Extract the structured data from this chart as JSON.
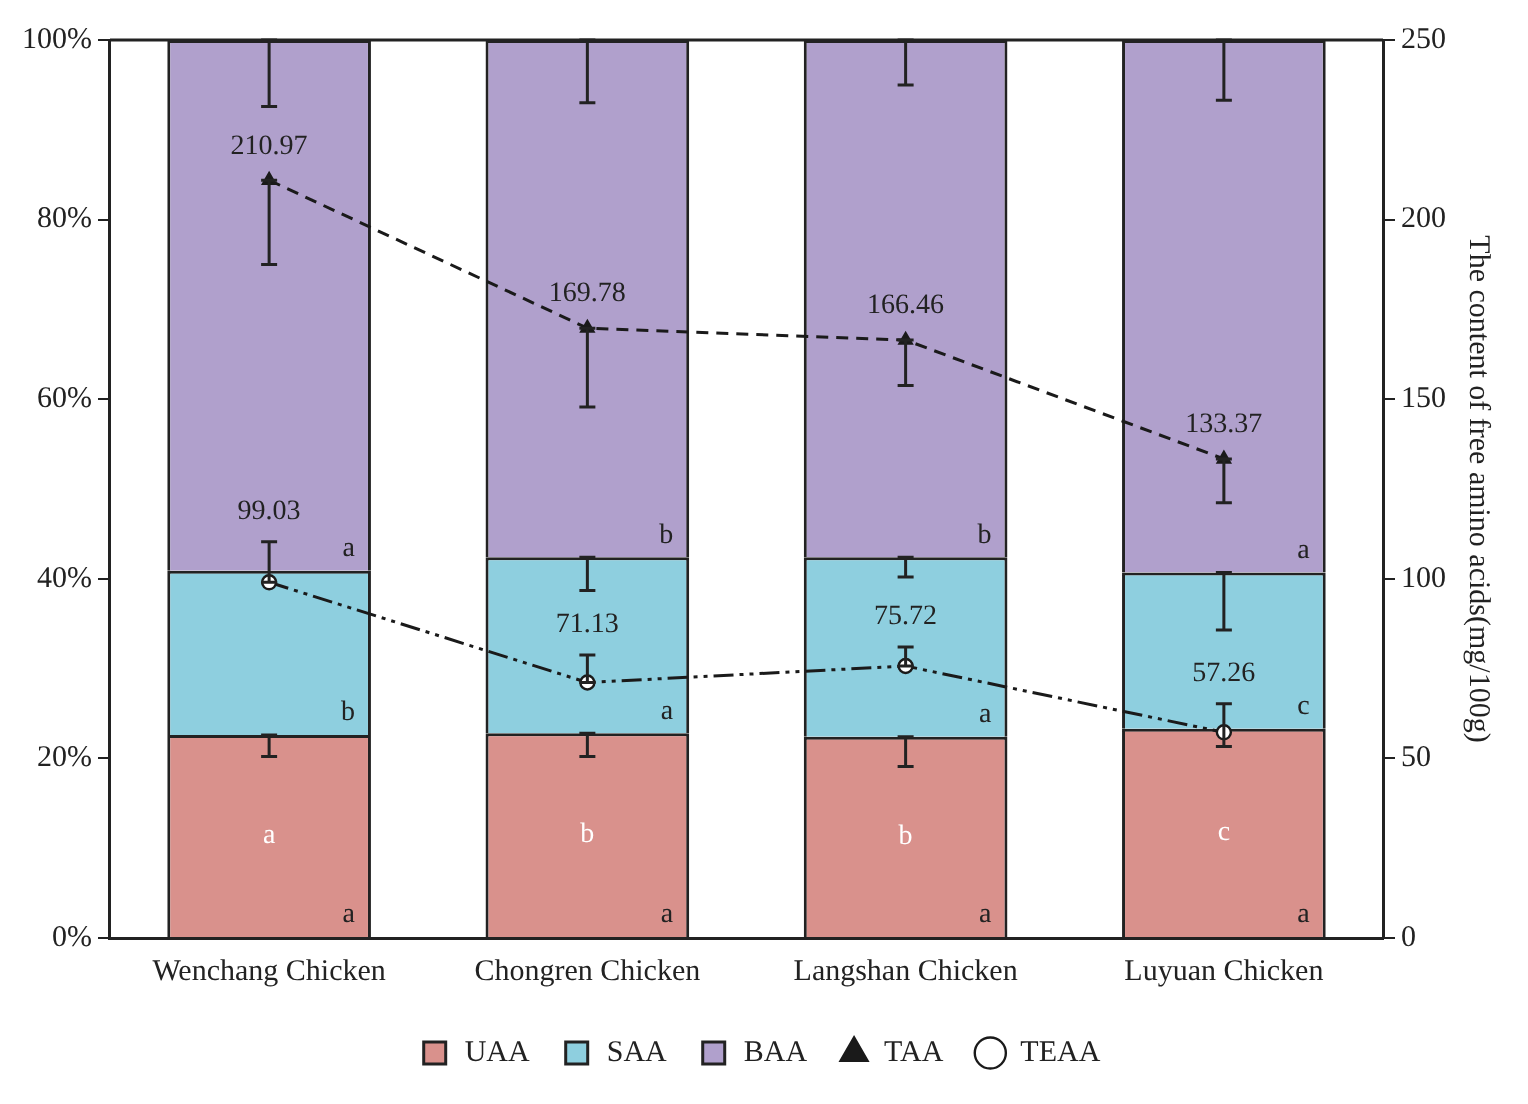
{
  "chart_data": {
    "type": "bar",
    "stacked": true,
    "categories": [
      "Wenchang Chicken",
      "Chongren Chicken",
      "Langshan Chicken",
      "Luyuan Chicken"
    ],
    "y2label": "The content of free amino acids(mg/100g)",
    "ylim": [
      0,
      100
    ],
    "yticks": [
      {
        "value": 0,
        "label": "0%"
      },
      {
        "value": 20,
        "label": "20%"
      },
      {
        "value": 40,
        "label": "40%"
      },
      {
        "value": 60,
        "label": "60%"
      },
      {
        "value": 80,
        "label": "80%"
      },
      {
        "value": 100,
        "label": "100%"
      }
    ],
    "y2lim": [
      0,
      250
    ],
    "y2ticks": [
      0,
      50,
      100,
      150,
      200,
      250
    ],
    "grid": false,
    "legend": "bottom",
    "series": [
      {
        "name": "UAA",
        "type": "bar",
        "color": "#d9918c",
        "values": [
          22.6,
          22.8,
          22.4,
          23.3
        ],
        "value_labels": [
          "a",
          "a",
          "a",
          "a"
        ],
        "errors": [
          [
            20.2,
            22.6
          ],
          [
            20.2,
            22.8
          ],
          [
            19.1,
            22.4
          ],
          null
        ]
      },
      {
        "name": "SAA",
        "type": "bar",
        "color": "#8ecfdf",
        "values": [
          18.3,
          19.6,
          20.0,
          17.4
        ],
        "value_labels": [
          "b",
          "a",
          "a",
          "c"
        ],
        "errors": [
          null,
          [
            38.7,
            42.4
          ],
          [
            40.2,
            42.4
          ],
          [
            34.3,
            40.7
          ]
        ]
      },
      {
        "name": "BAA",
        "type": "bar",
        "color": "#b0a0cc",
        "values": [
          59.1,
          57.6,
          57.6,
          59.3
        ],
        "value_labels": [
          "a",
          "b",
          "b",
          "a"
        ],
        "errors": [
          [
            92.6,
            100
          ],
          [
            93.0,
            100
          ],
          [
            95.0,
            100
          ],
          [
            93.3,
            100
          ]
        ]
      },
      {
        "name": "TAA",
        "type": "line",
        "axis": "y2",
        "color": "#1a1a1a",
        "marker": "triangle",
        "line_style": "dashed",
        "values": [
          210.97,
          169.78,
          166.46,
          133.37
        ],
        "value_labels": [
          "210.97",
          "169.78",
          "166.46",
          "133.37"
        ],
        "errors": [
          [
            187.5,
            210.97
          ],
          [
            147.8,
            169.78
          ],
          [
            153.8,
            166.46
          ],
          [
            121.2,
            133.37
          ]
        ]
      },
      {
        "name": "TEAA",
        "type": "line",
        "axis": "y2",
        "color": "#1a1a1a",
        "marker": "circle",
        "line_style": "dotted",
        "values": [
          99.03,
          71.13,
          75.72,
          57.26
        ],
        "value_labels": [
          "99.03",
          "71.13",
          "75.72",
          "57.26"
        ],
        "errors": [
          [
            99.03,
            110.3
          ],
          [
            71.13,
            78.8
          ],
          [
            75.72,
            81.0
          ],
          [
            53.3,
            65.2
          ]
        ]
      }
    ],
    "annotations": [
      "a",
      "b",
      "b",
      "c"
    ]
  }
}
